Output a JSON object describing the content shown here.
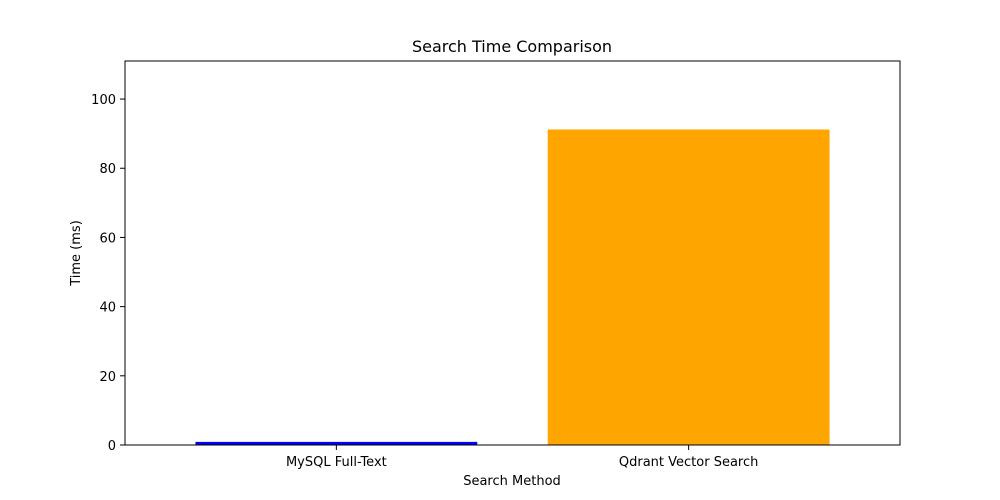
{
  "chart_data": {
    "type": "bar",
    "title": "Search Time Comparison",
    "xlabel": "Search Method",
    "ylabel": "Time (ms)",
    "categories": [
      "MySQL Full-Text",
      "Qdrant Vector Search"
    ],
    "values": [
      0.9,
      91.2
    ],
    "colors": [
      "#0000ff",
      "#ffa500"
    ],
    "ylim": [
      0,
      111
    ],
    "yticks": [
      0,
      20,
      40,
      60,
      80,
      100
    ],
    "grid": false,
    "legend": false
  }
}
